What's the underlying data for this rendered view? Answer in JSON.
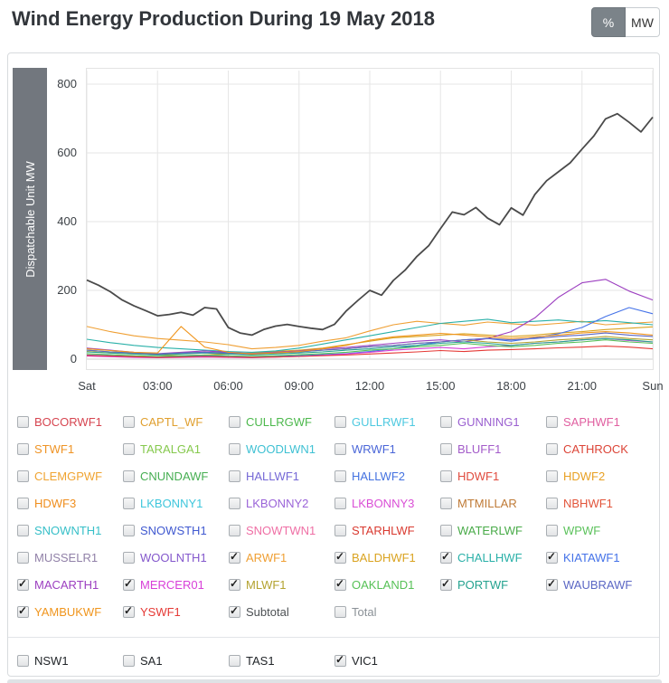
{
  "header": {
    "title": "Wind Energy Production During 19 May 2018",
    "unit_toggle": {
      "percent_label": "%",
      "mw_label": "MW",
      "active": "MW"
    }
  },
  "chart_data": {
    "type": "line",
    "title": "Wind Energy Production During 19 May 2018",
    "ylabel": "Dispatchable Unit MW",
    "ylim": [
      0,
      800
    ],
    "xlim_hours": [
      0,
      24
    ],
    "x_tick_labels": [
      "Sat",
      "03:00",
      "06:00",
      "09:00",
      "12:00",
      "15:00",
      "18:00",
      "21:00",
      "Sun"
    ],
    "y_tick_labels": [
      800,
      600,
      400,
      200,
      0
    ],
    "grid": true,
    "legend_position": "below-as-checkboxes",
    "series": [
      {
        "name": "ARWF1",
        "color": "#ef9f33",
        "x_step_hours": 1,
        "values": [
          95,
          80,
          68,
          60,
          55,
          50,
          42,
          30,
          34,
          40,
          52,
          62,
          82,
          100,
          110,
          104,
          99,
          108,
          103,
          99,
          104,
          110,
          100,
          104,
          108
        ]
      },
      {
        "name": "BALDHWF1",
        "color": "#daa320",
        "x_step_hours": 1,
        "values": [
          22,
          18,
          15,
          12,
          10,
          12,
          15,
          18,
          22,
          26,
          32,
          42,
          52,
          62,
          66,
          70,
          74,
          70,
          66,
          70,
          76,
          80,
          86,
          90,
          94
        ]
      },
      {
        "name": "CHALLHWF",
        "color": "#29b0a8",
        "x_step_hours": 1,
        "values": [
          58,
          48,
          40,
          34,
          30,
          26,
          22,
          20,
          24,
          32,
          44,
          56,
          68,
          80,
          92,
          104,
          110,
          116,
          106,
          110,
          114,
          108,
          112,
          106,
          100
        ]
      },
      {
        "name": "KIATAWF1",
        "color": "#4472e8",
        "x_step_hours": 1,
        "values": [
          12,
          10,
          8,
          6,
          8,
          10,
          9,
          6,
          8,
          10,
          13,
          16,
          22,
          30,
          40,
          50,
          56,
          60,
          52,
          62,
          74,
          92,
          124,
          150,
          132
        ]
      },
      {
        "name": "MACARTH1",
        "color": "#9c3fc0",
        "x_step_hours": 1,
        "values": [
          32,
          26,
          20,
          16,
          20,
          24,
          20,
          16,
          20,
          24,
          30,
          34,
          40,
          46,
          52,
          56,
          50,
          60,
          80,
          120,
          180,
          222,
          232,
          198,
          172
        ]
      },
      {
        "name": "MERCER01",
        "color": "#d83fd8",
        "x_step_hours": 1,
        "values": [
          9,
          7,
          5,
          4,
          5,
          6,
          5,
          4,
          6,
          8,
          11,
          15,
          20,
          26,
          30,
          34,
          30,
          36,
          40,
          46,
          50,
          56,
          60,
          54,
          50
        ]
      },
      {
        "name": "MLWF1",
        "color": "#b3a22f",
        "x_step_hours": 1,
        "values": [
          26,
          21,
          18,
          15,
          18,
          20,
          18,
          15,
          18,
          21,
          26,
          30,
          36,
          40,
          46,
          50,
          56,
          50,
          46,
          50,
          56,
          60,
          66,
          60,
          56
        ]
      },
      {
        "name": "OAKLAND1",
        "color": "#57c157",
        "x_step_hours": 1,
        "values": [
          16,
          13,
          10,
          8,
          10,
          12,
          10,
          8,
          10,
          13,
          16,
          20,
          26,
          30,
          36,
          40,
          46,
          40,
          36,
          40,
          46,
          50,
          56,
          50,
          46
        ]
      },
      {
        "name": "PORTWF",
        "color": "#23a28f",
        "x_step_hours": 1,
        "values": [
          21,
          18,
          15,
          12,
          15,
          18,
          15,
          12,
          15,
          18,
          21,
          26,
          30,
          36,
          40,
          46,
          50,
          46,
          40,
          46,
          50,
          56,
          60,
          56,
          50
        ]
      },
      {
        "name": "WAUBRAWF",
        "color": "#5b67c4",
        "x_step_hours": 1,
        "values": [
          26,
          21,
          18,
          15,
          18,
          20,
          18,
          15,
          18,
          21,
          26,
          30,
          36,
          40,
          46,
          50,
          56,
          60,
          56,
          60,
          66,
          70,
          76,
          70,
          66
        ]
      },
      {
        "name": "YAMBUKWF",
        "color": "#f0951d",
        "x_step_hours": 1,
        "values": [
          30,
          25,
          20,
          18,
          95,
          35,
          20,
          15,
          18,
          22,
          30,
          40,
          55,
          65,
          70,
          75,
          70,
          65,
          60,
          65,
          70,
          76,
          80,
          76,
          70
        ]
      },
      {
        "name": "YSWF1",
        "color": "#e53935",
        "x_step_hours": 1,
        "values": [
          11,
          9,
          7,
          5,
          6,
          8,
          6,
          5,
          6,
          8,
          10,
          12,
          15,
          18,
          21,
          25,
          22,
          26,
          28,
          30,
          33,
          35,
          38,
          35,
          30
        ]
      },
      {
        "name": "Subtotal",
        "color": "#4a4a4a",
        "x_step_hours": 0.5,
        "values": [
          230,
          215,
          196,
          172,
          155,
          141,
          126,
          130,
          136,
          128,
          150,
          146,
          92,
          76,
          70,
          86,
          96,
          101,
          95,
          90,
          86,
          101,
          140,
          171,
          200,
          186,
          229,
          259,
          299,
          330,
          380,
          428,
          420,
          441,
          410,
          391,
          440,
          419,
          479,
          519,
          545,
          571,
          611,
          649,
          699,
          714,
          689,
          661,
          704
        ]
      }
    ]
  },
  "farm_checkboxes": {
    "columns": 6,
    "items": [
      {
        "label": "BOCORWF1",
        "color": "#d64550",
        "checked": false
      },
      {
        "label": "CAPTL_WF",
        "color": "#e0a030",
        "checked": false
      },
      {
        "label": "CULLRGWF",
        "color": "#4cb84c",
        "checked": false
      },
      {
        "label": "GULLRWF1",
        "color": "#4ec9e0",
        "checked": false
      },
      {
        "label": "GUNNING1",
        "color": "#9a5fd0",
        "checked": false
      },
      {
        "label": "SAPHWF1",
        "color": "#e05fa0",
        "checked": false
      },
      {
        "label": "STWF1",
        "color": "#ef9426",
        "checked": false
      },
      {
        "label": "TARALGA1",
        "color": "#86c94e",
        "checked": false
      },
      {
        "label": "WOODLWN1",
        "color": "#3fc1d3",
        "checked": false
      },
      {
        "label": "WRWF1",
        "color": "#4a66d8",
        "checked": false
      },
      {
        "label": "BLUFF1",
        "color": "#a35bc9",
        "checked": false
      },
      {
        "label": "CATHROCK",
        "color": "#dc4437",
        "checked": false
      },
      {
        "label": "CLEMGPWF",
        "color": "#f0a432",
        "checked": false
      },
      {
        "label": "CNUNDAWF",
        "color": "#46ae52",
        "checked": false
      },
      {
        "label": "HALLWF1",
        "color": "#7568d6",
        "checked": false
      },
      {
        "label": "HALLWF2",
        "color": "#4472e0",
        "checked": false
      },
      {
        "label": "HDWF1",
        "color": "#e04b3e",
        "checked": false
      },
      {
        "label": "HDWF2",
        "color": "#e8a023",
        "checked": false
      },
      {
        "label": "HDWF3",
        "color": "#ef8e1e",
        "checked": false
      },
      {
        "label": "LKBONNY1",
        "color": "#3ec6dc",
        "checked": false
      },
      {
        "label": "LKBONNY2",
        "color": "#9a63d8",
        "checked": false
      },
      {
        "label": "LKBONNY3",
        "color": "#da4fd6",
        "checked": false
      },
      {
        "label": "MTMILLAR",
        "color": "#bf7a36",
        "checked": false
      },
      {
        "label": "NBHWF1",
        "color": "#e2543a",
        "checked": false
      },
      {
        "label": "SNOWNTH1",
        "color": "#36bfc8",
        "checked": false
      },
      {
        "label": "SNOWSTH1",
        "color": "#4059d0",
        "checked": false
      },
      {
        "label": "SNOWTWN1",
        "color": "#ef6fa5",
        "checked": false
      },
      {
        "label": "STARHLWF",
        "color": "#d93a30",
        "checked": false
      },
      {
        "label": "WATERLWF",
        "color": "#49ab49",
        "checked": false
      },
      {
        "label": "WPWF",
        "color": "#5cc25c",
        "checked": false
      },
      {
        "label": "MUSSELR1",
        "color": "#9181a8",
        "checked": false
      },
      {
        "label": "WOOLNTH1",
        "color": "#8458cc",
        "checked": false
      },
      {
        "label": "ARWF1",
        "color": "#ef9f33",
        "checked": true
      },
      {
        "label": "BALDHWF1",
        "color": "#daa320",
        "checked": true
      },
      {
        "label": "CHALLHWF",
        "color": "#29b0a8",
        "checked": true
      },
      {
        "label": "KIATAWF1",
        "color": "#4472e8",
        "checked": true
      },
      {
        "label": "MACARTH1",
        "color": "#9c3fc0",
        "checked": true
      },
      {
        "label": "MERCER01",
        "color": "#d83fd8",
        "checked": true
      },
      {
        "label": "MLWF1",
        "color": "#b3a22f",
        "checked": true
      },
      {
        "label": "OAKLAND1",
        "color": "#57c157",
        "checked": true
      },
      {
        "label": "PORTWF",
        "color": "#23a28f",
        "checked": true
      },
      {
        "label": "WAUBRAWF",
        "color": "#5b67c4",
        "checked": true
      },
      {
        "label": "YAMBUKWF",
        "color": "#f0951d",
        "checked": true
      },
      {
        "label": "YSWF1",
        "color": "#e53935",
        "checked": true
      },
      {
        "label": "Subtotal",
        "color": "#4d5154",
        "checked": true
      },
      {
        "label": "Total",
        "color": "#8a9096",
        "checked": false
      }
    ]
  },
  "region_checkboxes": [
    {
      "label": "NSW1",
      "color": "#212529",
      "checked": false
    },
    {
      "label": "SA1",
      "color": "#212529",
      "checked": false
    },
    {
      "label": "TAS1",
      "color": "#212529",
      "checked": false
    },
    {
      "label": "VIC1",
      "color": "#212529",
      "checked": true
    }
  ]
}
